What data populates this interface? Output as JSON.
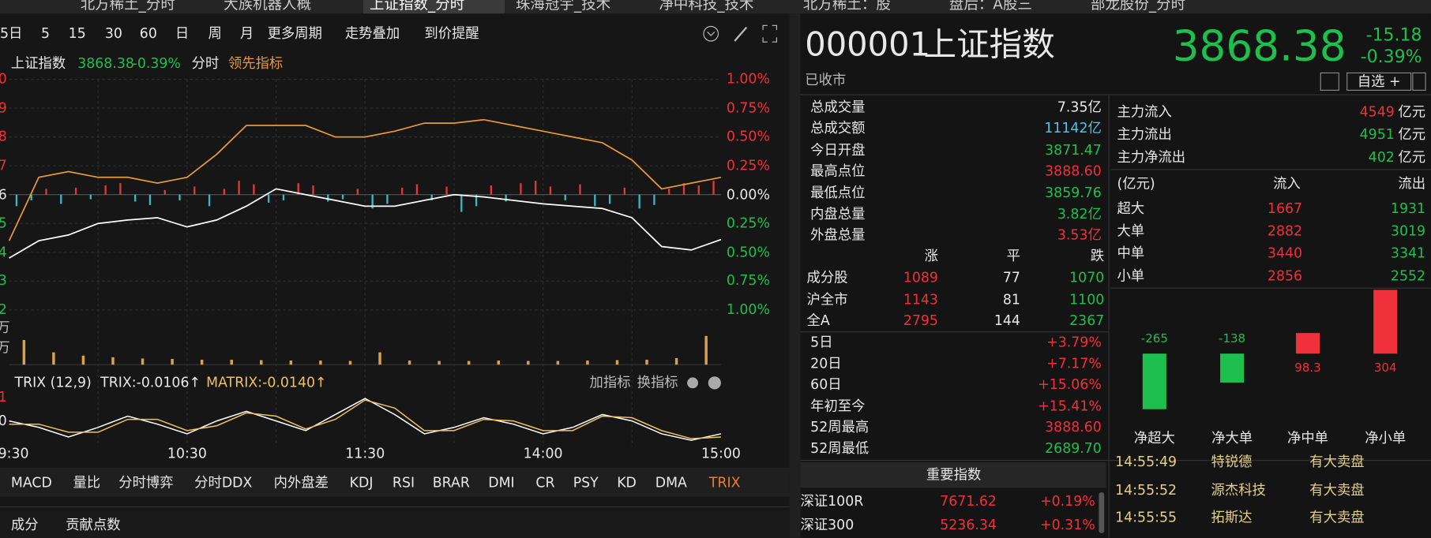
{
  "tabs": [
    "北方稀土_分时",
    "大族机器人概",
    "上证指数_分时",
    "珠海冠宇_技术",
    "净中科技_技术",
    "北方稀土：股",
    "盘后：A股三",
    "部龙股份_分时"
  ],
  "toolbar": [
    "5日",
    "5",
    "15",
    "30",
    "60",
    "日",
    "周",
    "月",
    "更多周期",
    "走势叠加",
    "到价提醒"
  ],
  "legend": {
    "name": "上证指数",
    "price": "3868.38",
    "change": "-0.39%"
  },
  "intraday": {
    "type": "line",
    "left_labels": [
      "0",
      "9",
      "8",
      "7",
      "6",
      "5",
      "4",
      "3",
      "2"
    ],
    "x": [
      0,
      10,
      20,
      30,
      40,
      50,
      60,
      70,
      80,
      90,
      100,
      110,
      120,
      130,
      140,
      150,
      160,
      170,
      180,
      190,
      200,
      210,
      220,
      230,
      240
    ],
    "xlim": [
      0,
      240
    ],
    "xticks": [
      {
        "value": 0,
        "label": "09:30"
      },
      {
        "value": 60,
        "label": "10:30"
      },
      {
        "value": 120,
        "label": "11:30"
      },
      {
        "value": 180,
        "label": "14:00"
      },
      {
        "value": 240,
        "label": "15:00"
      }
    ],
    "ylim": [
      -1,
      1
    ],
    "yticks": [
      {
        "value": 1,
        "label": "1.00%"
      },
      {
        "value": 0.75,
        "label": "0.75%"
      },
      {
        "value": 0.5,
        "label": "0.50%"
      },
      {
        "value": 0.25,
        "label": "0.25%"
      },
      {
        "value": 0,
        "label": "0.00%"
      },
      {
        "value": -0.25,
        "label": "0.25%"
      },
      {
        "value": -0.5,
        "label": "0.50%"
      },
      {
        "value": -0.75,
        "label": "0.75%"
      },
      {
        "value": -1,
        "label": "1.00%"
      }
    ],
    "series": [
      {
        "name": "分时",
        "color": "#ffffff",
        "values": [
          -0.55,
          -0.4,
          -0.35,
          -0.25,
          -0.22,
          -0.2,
          -0.28,
          -0.22,
          -0.1,
          0.05,
          0.0,
          -0.05,
          -0.1,
          -0.1,
          -0.05,
          0.0,
          -0.02,
          -0.05,
          -0.08,
          -0.1,
          -0.12,
          -0.2,
          -0.45,
          -0.48,
          -0.39
        ]
      },
      {
        "name": "领先指标",
        "color": "#e8983a",
        "values": [
          -0.4,
          0.15,
          0.2,
          0.15,
          0.15,
          0.1,
          0.15,
          0.35,
          0.6,
          0.6,
          0.6,
          0.5,
          0.5,
          0.55,
          0.62,
          0.62,
          0.65,
          0.6,
          0.55,
          0.5,
          0.45,
          0.3,
          0.05,
          0.1,
          0.15
        ]
      }
    ],
    "bars": [
      -0.1,
      -0.05,
      0.05,
      -0.08,
      0.06,
      -0.04,
      0.08,
      0.1,
      -0.06,
      -0.09,
      0.04,
      -0.05,
      0.07,
      -0.1,
      0.05,
      0.12,
      0.09,
      -0.07,
      -0.05,
      0.1,
      0.08,
      -0.06,
      -0.04,
      0.05,
      -0.12,
      -0.08,
      0.06,
      0.09,
      -0.05,
      0.07,
      -0.15,
      -0.1,
      0.08,
      -0.06,
      0.1,
      0.12,
      0.07,
      -0.05,
      0.09,
      -0.1,
      -0.08,
      0.06,
      -0.12,
      -0.09,
      0.05,
      0.1,
      0.08,
      0.12
    ]
  },
  "volume": {
    "type": "bar",
    "left_labels": [
      "万",
      "万"
    ],
    "ylim": [
      0,
      100
    ],
    "color": "#d8a050",
    "values": [
      60,
      30,
      22,
      18,
      15,
      14,
      12,
      12,
      11,
      10,
      10,
      9,
      30,
      10,
      9,
      9,
      10,
      9,
      9,
      10,
      11,
      12,
      16,
      70
    ]
  },
  "trix": {
    "type": "line",
    "title": "TRIX (12,9)",
    "trix_label": "TRIX:-0.0106↑",
    "matrix_label": "MATRIX:-0.0140↑",
    "buttons": [
      "加指标",
      "换指标"
    ],
    "left_labels": [
      "1",
      "0"
    ],
    "ylim": [
      -0.5,
      1.2
    ],
    "series": [
      {
        "color": "#ffffff",
        "values": [
          0.3,
          0.1,
          -0.2,
          0.1,
          0.45,
          0.2,
          -0.1,
          0.3,
          0.6,
          0.3,
          0.0,
          0.5,
          1.0,
          0.5,
          -0.1,
          0.1,
          0.4,
          0.2,
          -0.1,
          0.1,
          0.5,
          0.3,
          -0.1,
          -0.3,
          -0.1
        ]
      },
      {
        "color": "#f0c060",
        "values": [
          0.2,
          0.2,
          -0.05,
          -0.05,
          0.35,
          0.35,
          0.0,
          0.15,
          0.55,
          0.45,
          0.05,
          0.35,
          0.95,
          0.7,
          0.0,
          0.0,
          0.35,
          0.3,
          0.0,
          0.0,
          0.45,
          0.4,
          0.0,
          -0.25,
          -0.2
        ]
      }
    ]
  },
  "indicators": [
    "MACD",
    "量比",
    "分时博弈",
    "分时DDX",
    "内外盘差",
    "KDJ",
    "RSI",
    "BRAR",
    "DMI",
    "CR",
    "PSY",
    "KD",
    "DMA",
    "TRIX"
  ],
  "bottom_tabs": [
    "成分",
    "贡献点数"
  ],
  "quote": {
    "code": "000001",
    "name": "上证指数",
    "price": "3868.38",
    "change": "-15.18",
    "pct": "-0.39%",
    "status": "已收市",
    "watch": "自选 +"
  },
  "stats": [
    [
      "总成交量",
      "7.35亿"
    ],
    [
      "总成交额",
      "11142亿"
    ],
    [
      "今日开盘",
      "3871.47"
    ],
    [
      "最高点位",
      "3888.60"
    ],
    [
      "最低点位",
      "3859.76"
    ],
    [
      "内盘总量",
      "3.82亿"
    ],
    [
      "外盘总量",
      "3.53亿"
    ]
  ],
  "breadth": {
    "header": [
      "涨",
      "平",
      "跌"
    ],
    "rows": [
      [
        "成分股",
        "1089",
        "77",
        "1070"
      ],
      [
        "沪全市",
        "1143",
        "81",
        "1100"
      ],
      [
        "全A",
        "2795",
        "144",
        "2367"
      ]
    ]
  },
  "periods": [
    [
      "5日",
      "+3.79%"
    ],
    [
      "20日",
      "+7.17%"
    ],
    [
      "60日",
      "+15.06%"
    ],
    [
      "年初至今",
      "+15.41%"
    ],
    [
      "52周最高",
      "3888.60"
    ],
    [
      "52周最低",
      "2689.70"
    ]
  ],
  "flow": {
    "summary": [
      [
        "主力流入",
        "4549",
        "亿元"
      ],
      [
        "主力流出",
        "4951",
        "亿元"
      ],
      [
        "主力净流出",
        "402",
        "亿元"
      ]
    ],
    "header": [
      "(亿元)",
      "流入",
      "流出"
    ],
    "rows": [
      [
        "超大",
        "1667",
        "1931"
      ],
      [
        "大单",
        "2882",
        "3019"
      ],
      [
        "中单",
        "3440",
        "3341"
      ],
      [
        "小单",
        "2856",
        "2552"
      ]
    ]
  },
  "flow_chart": {
    "type": "bar",
    "categories": [
      "净超大",
      "净大单",
      "净中单",
      "净小单"
    ],
    "values": [
      -265,
      -138,
      98.3,
      304
    ],
    "ylim": [
      -350,
      304
    ],
    "up_color": "#f0303a",
    "down_color": "#1fbf4e"
  },
  "index": {
    "header": "重要指数",
    "rows": [
      [
        "深证100R",
        "7671.62",
        "+0.19%"
      ],
      [
        "深证300",
        "5236.34",
        "+0.31%"
      ]
    ]
  },
  "trades": [
    [
      "14:55:49",
      "特锐德",
      "有大卖盘"
    ],
    [
      "14:55:52",
      "源杰科技",
      "有大卖盘"
    ],
    [
      "14:55:55",
      "拓斯达",
      "有大卖盘"
    ]
  ]
}
